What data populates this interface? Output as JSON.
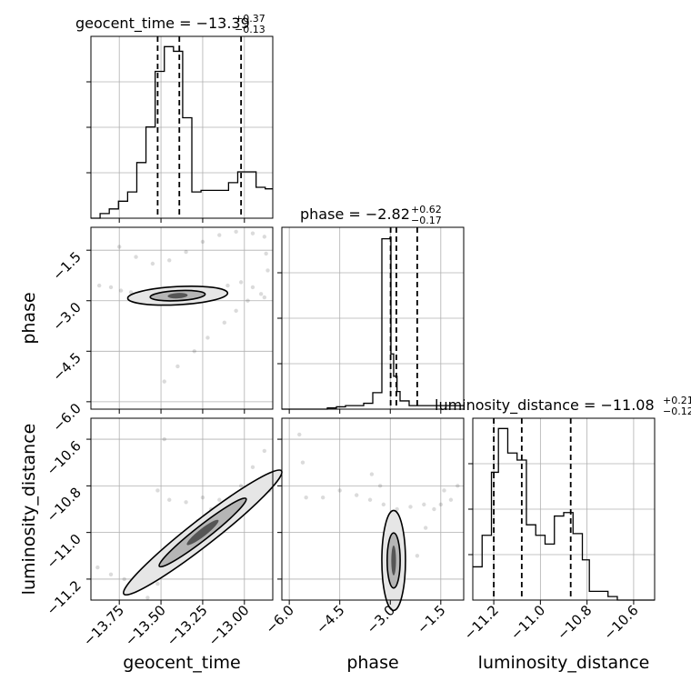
{
  "chart_data": {
    "type": "corner",
    "parameters": [
      "geocent_time",
      "phase",
      "luminosity_distance"
    ],
    "titles": [
      {
        "param": "geocent_time",
        "prefix": "geocent_time = ",
        "median": "−13.39",
        "plus": "+0.37",
        "minus": "−0.13"
      },
      {
        "param": "phase",
        "prefix": "phase = ",
        "median": "−2.82",
        "plus": "+0.62",
        "minus": "−0.17"
      },
      {
        "param": "luminosity_distance",
        "prefix": "luminosity_distance = ",
        "median": "−11.08",
        "plus": "+0.21",
        "minus": "−0.12"
      }
    ],
    "ranges": {
      "geocent_time": [
        -13.92,
        -12.83
      ],
      "phase": [
        -6.22,
        -0.82
      ],
      "luminosity_distance": [
        -11.29,
        -10.51
      ]
    },
    "ticks": {
      "geocent_time": {
        "values": [
          -13.75,
          -13.5,
          -13.25,
          -13.0
        ],
        "labels": [
          "−13.75",
          "−13.50",
          "−13.25",
          "−13.00"
        ]
      },
      "phase": {
        "values": [
          -6.0,
          -4.5,
          -3.0,
          -1.5
        ],
        "labels": [
          "−6.0",
          "−4.5",
          "−3.0",
          "−1.5"
        ]
      },
      "luminosity_distance": {
        "values": [
          -11.2,
          -11.0,
          -10.8,
          -10.6
        ],
        "labels": [
          "−11.2",
          "−11.0",
          "−10.8",
          "−10.6"
        ]
      }
    },
    "quantiles": {
      "geocent_time": [
        -13.52,
        -13.39,
        -13.02
      ],
      "phase": [
        -2.99,
        -2.82,
        -2.2
      ],
      "luminosity_distance": [
        -11.2,
        -11.08,
        -10.87
      ]
    },
    "histograms": {
      "geocent_time": {
        "edges": [
          -13.92,
          -13.865,
          -13.81,
          -13.755,
          -13.7,
          -13.645,
          -13.59,
          -13.535,
          -13.48,
          -13.425,
          -13.37,
          -13.315,
          -13.26,
          -13.205,
          -13.15,
          -13.095,
          -13.04,
          -12.985,
          -12.93,
          -12.875,
          -12.83
        ],
        "counts": [
          0,
          3,
          6,
          11,
          17,
          36,
          59,
          95,
          111,
          108,
          65,
          17,
          18,
          18,
          18,
          23,
          30,
          30,
          20,
          19
        ]
      },
      "phase": {
        "edges": [
          -6.22,
          -5.95,
          -5.68,
          -5.41,
          -5.14,
          -4.87,
          -4.6,
          -4.33,
          -3.79,
          -3.52,
          -3.25,
          -3.01,
          -2.98,
          -2.9,
          -2.8,
          -2.71,
          -2.44,
          -2.17,
          -1.9,
          -1.09,
          -0.82
        ],
        "counts": [
          0,
          0,
          0,
          0,
          0,
          1,
          2,
          3,
          5,
          14,
          145,
          146,
          47,
          28,
          15,
          7,
          3,
          3,
          3,
          3
        ]
      },
      "luminosity_distance": {
        "edges": [
          -11.29,
          -11.25,
          -11.21,
          -11.18,
          -11.14,
          -11.1,
          -11.06,
          -11.02,
          -10.98,
          -10.94,
          -10.9,
          -10.86,
          -10.82,
          -10.79,
          -10.75,
          -10.71,
          -10.67,
          -10.63,
          -10.59,
          -10.55,
          -10.51
        ],
        "counts": [
          19,
          37,
          73,
          98,
          84,
          80,
          43,
          37,
          32,
          48,
          50,
          38,
          23,
          5,
          5,
          2,
          0,
          0,
          0,
          0
        ]
      }
    },
    "samples_2d": {
      "geocent_time_vs_phase": [
        {
          "x": -13.87,
          "y": -2.55
        },
        {
          "x": -13.8,
          "y": -2.6
        },
        {
          "x": -13.74,
          "y": -2.7
        },
        {
          "x": -13.68,
          "y": -2.75
        },
        {
          "x": -13.62,
          "y": -2.85
        },
        {
          "x": -13.55,
          "y": -2.95
        },
        {
          "x": -13.5,
          "y": -2.98
        },
        {
          "x": -13.45,
          "y": -2.92
        },
        {
          "x": -13.4,
          "y": -2.85
        },
        {
          "x": -13.32,
          "y": -2.8
        },
        {
          "x": -13.25,
          "y": -2.75
        },
        {
          "x": -13.18,
          "y": -2.7
        },
        {
          "x": -13.1,
          "y": -2.55
        },
        {
          "x": -13.02,
          "y": -2.45
        },
        {
          "x": -12.95,
          "y": -2.6
        },
        {
          "x": -12.88,
          "y": -2.9
        },
        {
          "x": -13.75,
          "y": -1.4
        },
        {
          "x": -13.65,
          "y": -1.7
        },
        {
          "x": -13.55,
          "y": -1.9
        },
        {
          "x": -13.45,
          "y": -1.8
        },
        {
          "x": -13.35,
          "y": -1.55
        },
        {
          "x": -13.25,
          "y": -1.25
        },
        {
          "x": -13.15,
          "y": -1.05
        },
        {
          "x": -13.05,
          "y": -0.95
        },
        {
          "x": -12.95,
          "y": -1.0
        },
        {
          "x": -12.88,
          "y": -1.1
        },
        {
          "x": -12.87,
          "y": -1.6
        },
        {
          "x": -12.86,
          "y": -2.1
        },
        {
          "x": -13.48,
          "y": -5.4
        },
        {
          "x": -13.4,
          "y": -4.95
        },
        {
          "x": -13.3,
          "y": -4.5
        },
        {
          "x": -13.22,
          "y": -4.1
        },
        {
          "x": -13.12,
          "y": -3.65
        },
        {
          "x": -13.05,
          "y": -3.3
        },
        {
          "x": -12.98,
          "y": -3.0
        },
        {
          "x": -12.9,
          "y": -2.8
        }
      ],
      "geocent_time_vs_luminosity_distance": [
        {
          "x": -13.88,
          "y": -11.15
        },
        {
          "x": -13.8,
          "y": -11.18
        },
        {
          "x": -13.72,
          "y": -11.2
        },
        {
          "x": -13.65,
          "y": -11.25
        },
        {
          "x": -13.58,
          "y": -11.28
        },
        {
          "x": -13.52,
          "y": -11.22
        },
        {
          "x": -13.48,
          "y": -11.15
        },
        {
          "x": -13.42,
          "y": -11.05
        },
        {
          "x": -13.35,
          "y": -11.0
        },
        {
          "x": -13.28,
          "y": -10.95
        },
        {
          "x": -13.2,
          "y": -10.9
        },
        {
          "x": -13.1,
          "y": -10.87
        },
        {
          "x": -13.02,
          "y": -10.8
        },
        {
          "x": -12.95,
          "y": -10.72
        },
        {
          "x": -12.88,
          "y": -10.65
        },
        {
          "x": -12.85,
          "y": -10.82
        },
        {
          "x": -13.52,
          "y": -10.82
        },
        {
          "x": -13.45,
          "y": -10.86
        },
        {
          "x": -13.35,
          "y": -10.87
        },
        {
          "x": -13.25,
          "y": -10.85
        },
        {
          "x": -13.15,
          "y": -10.86
        },
        {
          "x": -13.05,
          "y": -10.86
        },
        {
          "x": -12.95,
          "y": -10.86
        },
        {
          "x": -13.48,
          "y": -10.6
        }
      ],
      "phase_vs_luminosity_distance": [
        {
          "x": -5.7,
          "y": -10.58
        },
        {
          "x": -5.6,
          "y": -10.7
        },
        {
          "x": -5.5,
          "y": -10.85
        },
        {
          "x": -5.0,
          "y": -10.85
        },
        {
          "x": -4.5,
          "y": -10.82
        },
        {
          "x": -4.0,
          "y": -10.84
        },
        {
          "x": -3.6,
          "y": -10.86
        },
        {
          "x": -3.2,
          "y": -10.88
        },
        {
          "x": -2.8,
          "y": -10.9
        },
        {
          "x": -2.4,
          "y": -10.89
        },
        {
          "x": -2.0,
          "y": -10.88
        },
        {
          "x": -1.5,
          "y": -10.88
        },
        {
          "x": -1.2,
          "y": -10.86
        },
        {
          "x": -3.55,
          "y": -10.75
        },
        {
          "x": -3.3,
          "y": -10.8
        },
        {
          "x": -2.2,
          "y": -11.1
        },
        {
          "x": -1.95,
          "y": -10.98
        },
        {
          "x": -1.7,
          "y": -10.9
        },
        {
          "x": -1.4,
          "y": -10.82
        },
        {
          "x": -1.0,
          "y": -10.8
        },
        {
          "x": -2.95,
          "y": -11.15
        },
        {
          "x": -2.85,
          "y": -11.2
        },
        {
          "x": -3.05,
          "y": -11.25
        },
        {
          "x": -2.7,
          "y": -11.22
        }
      ]
    }
  }
}
